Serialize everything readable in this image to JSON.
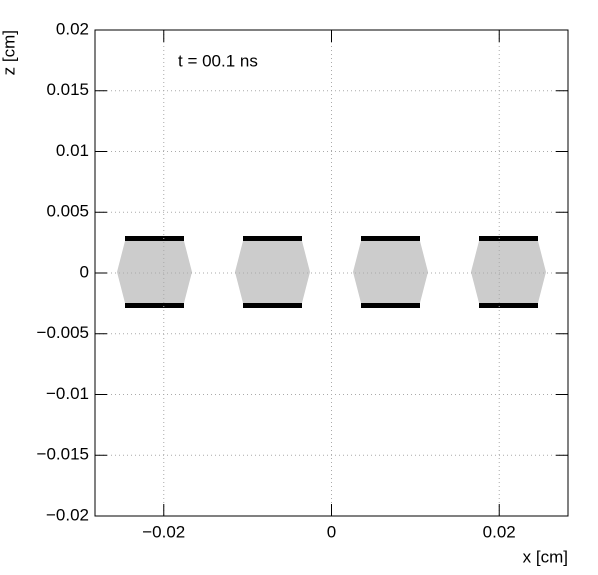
{
  "chart_data": {
    "type": "geometry",
    "annotation": "t = 00.1 ns",
    "x_label": "x [cm]",
    "y_label": "z [cm]",
    "xlim": [
      -0.0282,
      0.0282
    ],
    "ylim": [
      -0.02,
      0.02
    ],
    "xticks": [
      {
        "value": -0.02,
        "label": "−0.02"
      },
      0,
      0.02
    ],
    "yticks": [
      {
        "value": -0.02,
        "label": "−0.02"
      },
      {
        "value": -0.015,
        "label": "−0.015"
      },
      {
        "value": -0.01,
        "label": "−0.01"
      },
      {
        "value": -0.005,
        "label": "−0.005"
      },
      0,
      0.005,
      0.01,
      0.015,
      0.02
    ],
    "grid": true
  }
}
